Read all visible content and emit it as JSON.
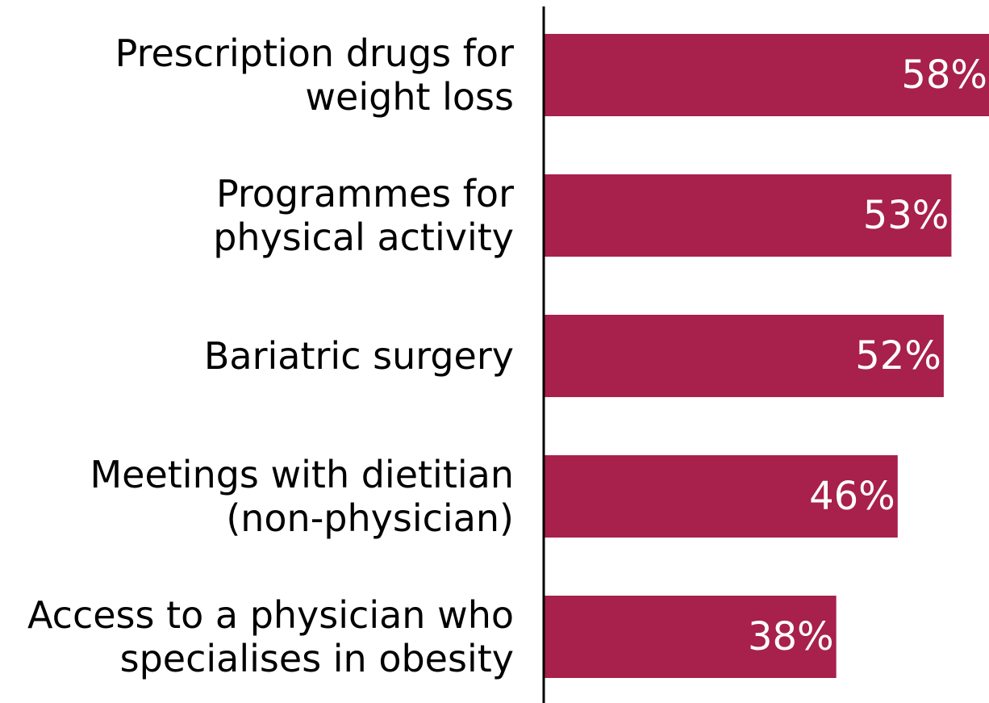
{
  "chart_data": {
    "type": "bar",
    "orientation": "horizontal",
    "categories": [
      [
        "Prescription drugs for",
        "weight loss"
      ],
      [
        "Programmes for",
        "physical activity"
      ],
      [
        "Bariatric surgery"
      ],
      [
        "Meetings with dietitian",
        "(non-physician)"
      ],
      [
        "Access to a physician who",
        "specialises in obesity"
      ]
    ],
    "values": [
      58,
      53,
      52,
      46,
      38
    ],
    "value_labels": [
      "58%",
      "53%",
      "52%",
      "46%",
      "38%"
    ],
    "unit": "%",
    "xlim": [
      0,
      58
    ],
    "title": "",
    "xlabel": "",
    "ylabel": "",
    "grid": false,
    "legend": "none",
    "colors": {
      "bar": "#A8204C",
      "axis": "#000000",
      "label_text": "#000000",
      "value_text": "#ffffff"
    }
  }
}
